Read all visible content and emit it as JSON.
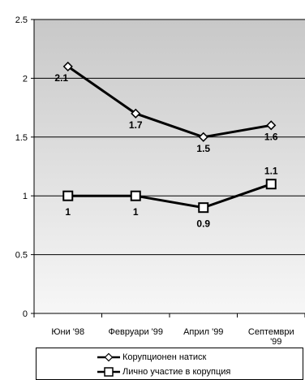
{
  "chart_data": {
    "type": "line",
    "categories": [
      "Юни '98",
      "Февруари '99",
      "Април '99",
      "Септември '99"
    ],
    "y_ticks": [
      "0",
      "0.5",
      "1",
      "1.5",
      "2",
      "2.5"
    ],
    "ylim": [
      0,
      2.5
    ],
    "grid": true,
    "legend_position": "bottom",
    "series": [
      {
        "name": "Корупционен натиск",
        "marker": "diamond",
        "values": [
          2.1,
          1.7,
          1.5,
          1.6
        ],
        "labels": [
          "2.1",
          "1.7",
          "1.5",
          "1.6"
        ]
      },
      {
        "name": "Лично участие в корупция",
        "marker": "square",
        "values": [
          1,
          1,
          0.9,
          1.1
        ],
        "labels": [
          "1",
          "1",
          "0.9",
          "1.1"
        ]
      }
    ],
    "colors": {
      "line": "#000000",
      "grid": "#000000",
      "plot_top": "#c8c8c8",
      "plot_bottom": "#f7f7f7"
    }
  }
}
